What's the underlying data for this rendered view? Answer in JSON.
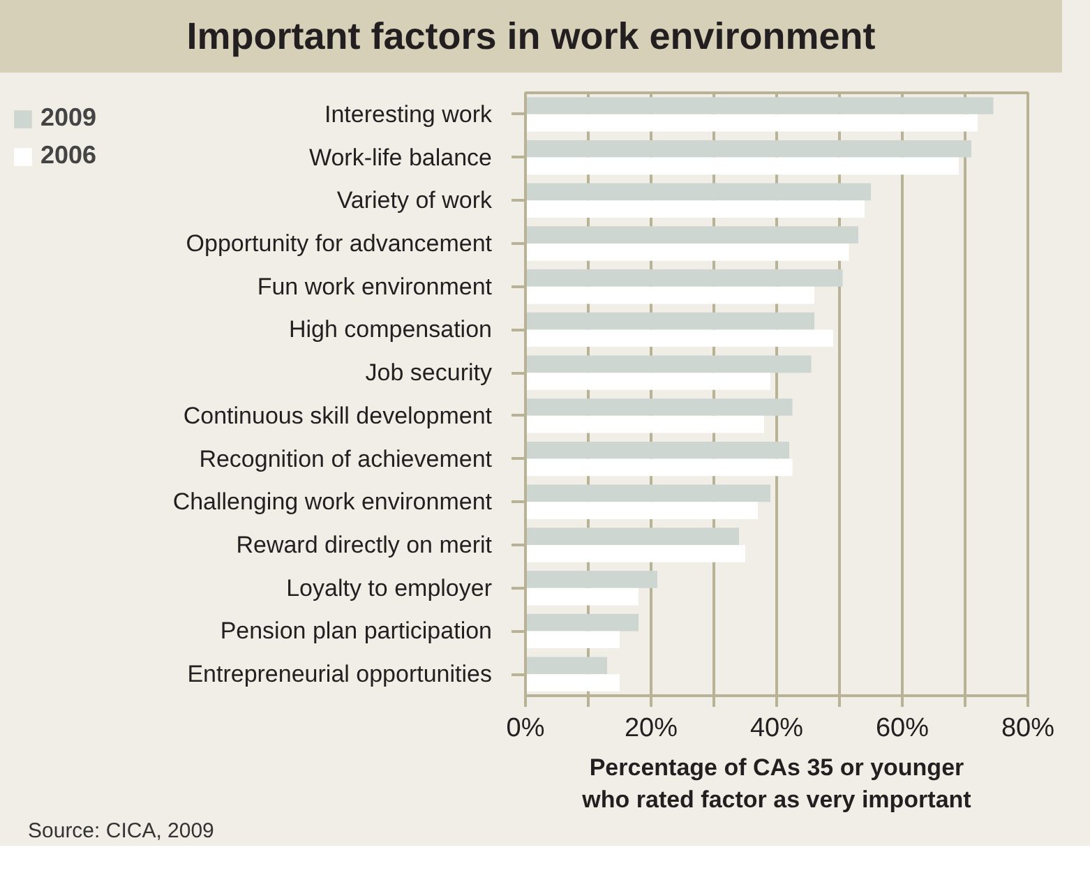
{
  "chart_data": {
    "type": "bar",
    "orientation": "horizontal",
    "title": "Important factors in work environment",
    "categories": [
      "Interesting work",
      "Work-life balance",
      "Variety of work",
      "Opportunity for advancement",
      "Fun work environment",
      "High compensation",
      "Job security",
      "Continuous skill development",
      "Recognition of achievement",
      "Challenging work environment",
      "Reward directly on merit",
      "Loyalty to employer",
      "Pension plan participation",
      "Entrepreneurial opportunities"
    ],
    "series": [
      {
        "name": "2009",
        "color": "#cdd6d1",
        "values": [
          74.5,
          71,
          55,
          53,
          50.5,
          46,
          45.5,
          42.5,
          42,
          39,
          34,
          21,
          18,
          13
        ]
      },
      {
        "name": "2006",
        "color": "#ffffff",
        "values": [
          72,
          69,
          54,
          51.5,
          46,
          49,
          39,
          38,
          42.5,
          37,
          35,
          18,
          15,
          15
        ]
      }
    ],
    "xlim": [
      0,
      80
    ],
    "xticks": [
      {
        "value": 0,
        "label": "0%"
      },
      {
        "value": 10,
        "label": null
      },
      {
        "value": 20,
        "label": "20%"
      },
      {
        "value": 30,
        "label": null
      },
      {
        "value": 40,
        "label": "40%"
      },
      {
        "value": 50,
        "label": null
      },
      {
        "value": 60,
        "label": "60%"
      },
      {
        "value": 70,
        "label": null
      },
      {
        "value": 80,
        "label": "80%"
      }
    ],
    "xlabel": "Percentage of CAs 35 or younger\nwho rated factor as very important",
    "annotations": [
      "Source: CICA, 2009"
    ],
    "grid": "x",
    "legend": "top left"
  }
}
